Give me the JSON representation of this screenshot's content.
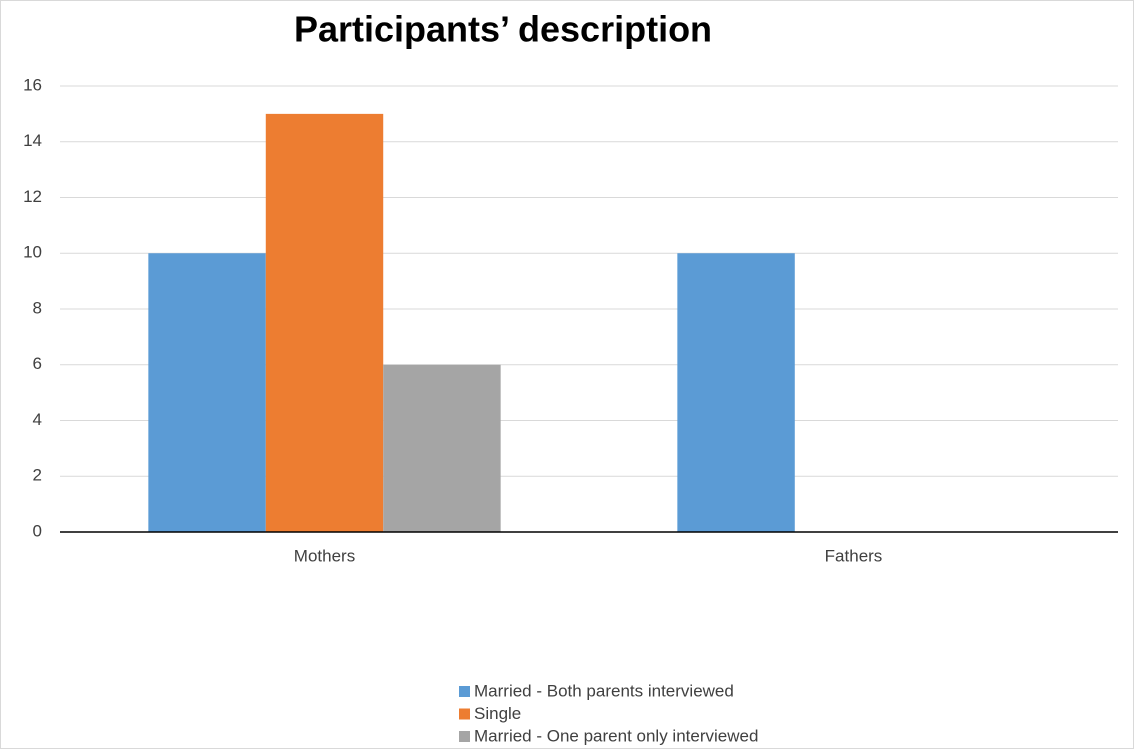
{
  "chart_data": {
    "type": "bar",
    "title": "Participants’ description",
    "categories": [
      "Mothers",
      "Fathers"
    ],
    "series": [
      {
        "name": "Married - Both parents interviewed",
        "color": "#5b9bd5",
        "values": [
          10,
          10
        ]
      },
      {
        "name": "Single",
        "color": "#ed7d31",
        "values": [
          15,
          0
        ]
      },
      {
        "name": "Married - One parent only interviewed",
        "color": "#a5a5a5",
        "values": [
          6,
          0
        ]
      }
    ],
    "ylim": [
      0,
      16
    ],
    "yticks": [
      0,
      2,
      4,
      6,
      8,
      10,
      12,
      14,
      16
    ],
    "grid": true,
    "legend": "bottom"
  }
}
